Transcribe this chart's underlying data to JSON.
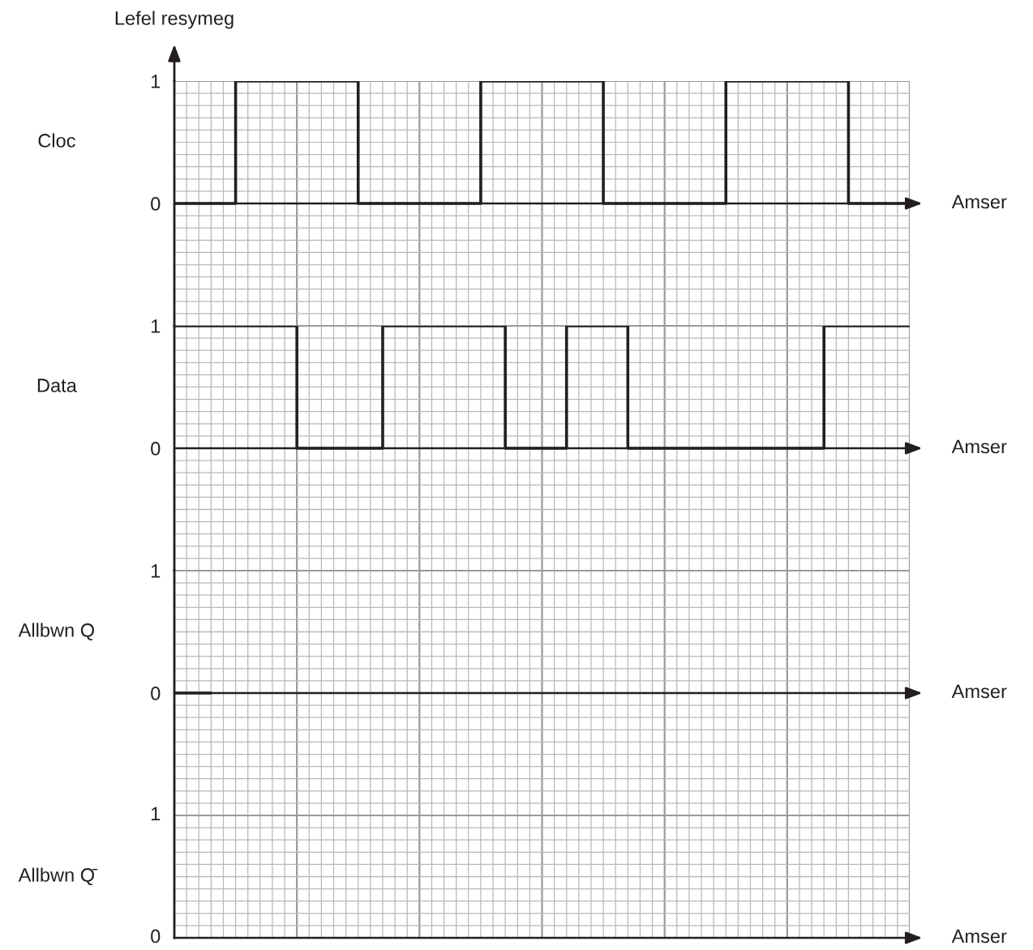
{
  "chart_data": [
    {
      "type": "step",
      "title": "Lefel resymeg",
      "ylabel": "Cloc",
      "xlabel": "Amser",
      "ylim": [
        -1,
        1
      ],
      "grid": true,
      "categories": [
        null,
        null,
        null,
        null,
        null,
        null,
        null,
        null,
        null,
        null,
        null,
        null,
        null,
        null,
        null,
        null,
        null,
        null,
        null,
        null,
        null,
        null,
        null,
        null,
        null,
        null,
        null,
        null,
        null,
        null,
        null,
        null,
        null,
        null,
        null,
        null,
        null,
        null,
        null,
        null,
        null,
        null,
        null,
        null,
        null,
        null,
        null,
        null,
        null,
        null,
        null,
        null,
        null,
        null,
        null,
        null,
        null,
        null,
        null,
        null,
        null
      ],
      "series": [
        {
          "color": "#231f20",
          "values": [
            0,
            0,
            0,
            0,
            0,
            1,
            1,
            1,
            1,
            1,
            1,
            1,
            1,
            1,
            1,
            0,
            0,
            0,
            0,
            0,
            0,
            0,
            0,
            0,
            0,
            1,
            1,
            1,
            1,
            1,
            1,
            1,
            1,
            1,
            1,
            0,
            0,
            0,
            0,
            0,
            0,
            0,
            0,
            0,
            0,
            1,
            1,
            1,
            1,
            1,
            1,
            1,
            1,
            1,
            1,
            0,
            0,
            0,
            0,
            0,
            0
          ]
        }
      ],
      "yticks": [
        {
          "value": -1,
          "label": null
        },
        {
          "value": -0.9,
          "label": null
        },
        {
          "value": -0.8,
          "label": null
        },
        {
          "value": -0.7,
          "label": null
        },
        {
          "value": -0.6,
          "label": null
        },
        {
          "value": -0.5,
          "label": null
        },
        {
          "value": -0.4,
          "label": null
        },
        {
          "value": -0.3,
          "label": null
        },
        {
          "value": -0.2,
          "label": null
        },
        {
          "value": -0.1,
          "label": null
        },
        0,
        {
          "value": 0.1,
          "label": null
        },
        {
          "value": 0.2,
          "label": null
        },
        {
          "value": 0.3,
          "label": null
        },
        {
          "value": 0.4,
          "label": null
        },
        {
          "value": 0.5,
          "label": null
        },
        {
          "value": 0.6,
          "label": null
        },
        {
          "value": 0.7,
          "label": null
        },
        {
          "value": 0.8,
          "label": null
        },
        {
          "value": 0.9,
          "label": null
        },
        1
      ]
    },
    {
      "type": "step",
      "ylabel": "Data",
      "xlabel": "Amser",
      "ylim": [
        -1,
        1
      ],
      "grid": true,
      "categories": [
        null,
        null,
        null,
        null,
        null,
        null,
        null,
        null,
        null,
        null,
        null,
        null,
        null,
        null,
        null,
        null,
        null,
        null,
        null,
        null,
        null,
        null,
        null,
        null,
        null,
        null,
        null,
        null,
        null,
        null,
        null,
        null,
        null,
        null,
        null,
        null,
        null,
        null,
        null,
        null,
        null,
        null,
        null,
        null,
        null,
        null,
        null,
        null,
        null,
        null,
        null,
        null,
        null,
        null,
        null,
        null,
        null,
        null,
        null,
        null,
        null
      ],
      "series": [
        {
          "color": "#231f20",
          "values": [
            1,
            1,
            1,
            1,
            1,
            1,
            1,
            1,
            1,
            1,
            0,
            0,
            0,
            0,
            0,
            0,
            0,
            1,
            1,
            1,
            1,
            1,
            1,
            1,
            1,
            1,
            1,
            0,
            0,
            0,
            0,
            0,
            1,
            1,
            1,
            1,
            1,
            0,
            0,
            0,
            0,
            0,
            0,
            0,
            0,
            0,
            0,
            0,
            0,
            0,
            0,
            0,
            0,
            1,
            1,
            1,
            1,
            1,
            1,
            1,
            1
          ]
        }
      ],
      "yticks": [
        {
          "value": -1,
          "label": null
        },
        {
          "value": -0.9,
          "label": null
        },
        {
          "value": -0.8,
          "label": null
        },
        {
          "value": -0.7,
          "label": null
        },
        {
          "value": -0.6,
          "label": null
        },
        {
          "value": -0.5,
          "label": null
        },
        {
          "value": -0.4,
          "label": null
        },
        {
          "value": -0.3,
          "label": null
        },
        {
          "value": -0.2,
          "label": null
        },
        {
          "value": -0.1,
          "label": null
        },
        0,
        {
          "value": 0.1,
          "label": null
        },
        {
          "value": 0.2,
          "label": null
        },
        {
          "value": 0.3,
          "label": null
        },
        {
          "value": 0.4,
          "label": null
        },
        {
          "value": 0.5,
          "label": null
        },
        {
          "value": 0.6,
          "label": null
        },
        {
          "value": 0.7,
          "label": null
        },
        {
          "value": 0.8,
          "label": null
        },
        {
          "value": 0.9,
          "label": null
        },
        1
      ]
    },
    {
      "type": "step",
      "ylabel": "Allbwn Q",
      "xlabel": "Amser",
      "ylim": [
        -2,
        1
      ],
      "grid": true,
      "categories": [
        null,
        null,
        null,
        null,
        null,
        null,
        null,
        null,
        null,
        null,
        null,
        null,
        null,
        null,
        null,
        null,
        null,
        null,
        null,
        null,
        null,
        null,
        null,
        null,
        null,
        null,
        null,
        null,
        null,
        null,
        null,
        null,
        null,
        null,
        null,
        null,
        null,
        null,
        null,
        null,
        null,
        null,
        null,
        null,
        null,
        null,
        null,
        null,
        null,
        null,
        null,
        null,
        null,
        null,
        null,
        null,
        null,
        null,
        null,
        null,
        null
      ],
      "series": [
        {
          "color": "#231f20",
          "values": [
            0,
            0,
            0,
            0,
            null,
            null,
            null,
            null,
            null,
            null,
            null,
            null,
            null,
            null,
            null,
            null,
            null,
            null,
            null,
            null,
            null,
            null,
            null,
            null,
            null,
            null,
            null,
            null,
            null,
            null,
            null,
            null,
            null,
            null,
            null,
            null,
            null,
            null,
            null,
            null,
            null,
            null,
            null,
            null,
            null,
            null,
            null,
            null,
            null,
            null,
            null,
            null,
            null,
            null,
            null,
            null,
            null,
            null,
            null,
            null,
            null
          ]
        }
      ],
      "yticks": [
        {
          "value": -2,
          "label": null
        },
        {
          "value": -1.9,
          "label": null
        },
        {
          "value": -1.8,
          "label": null
        },
        {
          "value": -1.7,
          "label": null
        },
        {
          "value": -1.6,
          "label": null
        },
        {
          "value": -1.5,
          "label": null
        },
        {
          "value": -1.4,
          "label": null
        },
        {
          "value": -1.3,
          "label": null
        },
        {
          "value": -1.2,
          "label": null
        },
        {
          "value": -1.1,
          "label": null
        },
        {
          "value": -1,
          "label": null
        },
        {
          "value": -0.9,
          "label": null
        },
        {
          "value": -0.8,
          "label": null
        },
        {
          "value": -0.7,
          "label": null
        },
        {
          "value": -0.6,
          "label": null
        },
        {
          "value": -0.5,
          "label": null
        },
        {
          "value": -0.4,
          "label": null
        },
        {
          "value": -0.3,
          "label": null
        },
        {
          "value": -0.2,
          "label": null
        },
        {
          "value": -0.1,
          "label": null
        },
        0,
        {
          "value": 0.1,
          "label": null
        },
        {
          "value": 0.2,
          "label": null
        },
        {
          "value": 0.3,
          "label": null
        },
        {
          "value": 0.4,
          "label": null
        },
        {
          "value": 0.5,
          "label": null
        },
        {
          "value": 0.6,
          "label": null
        },
        {
          "value": 0.7,
          "label": null
        },
        {
          "value": 0.8,
          "label": null
        },
        {
          "value": 0.9,
          "label": null
        },
        1
      ]
    },
    {
      "type": "other",
      "ylabel": "Allbwn Q̄",
      "xlabel": "Amser",
      "annotations": [
        "1",
        "0"
      ]
    }
  ]
}
